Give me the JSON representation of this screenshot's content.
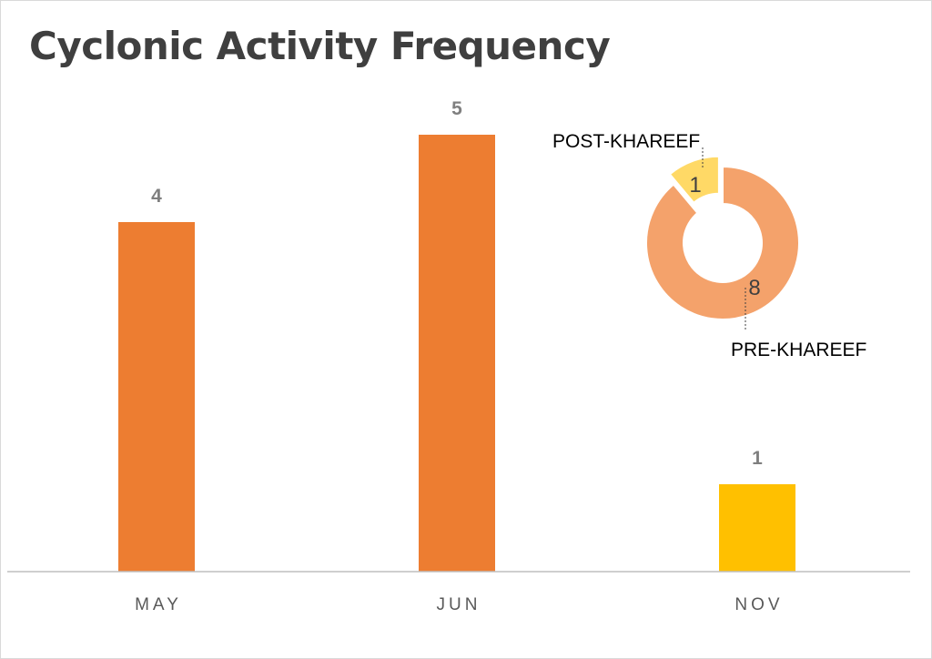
{
  "chart_data": [
    {
      "type": "bar",
      "title": "Cyclonic Activity Frequency",
      "categories": [
        "MAY",
        "JUN",
        "NOV"
      ],
      "values": [
        4,
        5,
        1
      ],
      "colors": [
        "#ed7d31",
        "#ed7d31",
        "#ffc000"
      ],
      "ylim": [
        0,
        5.5
      ],
      "grid": false,
      "legend": "none"
    },
    {
      "type": "pie",
      "subtype": "donut",
      "labels": [
        "PRE-KHAREEF",
        "POST-KHAREEF"
      ],
      "values": [
        8,
        1
      ],
      "colors": [
        "#f4a26b",
        "#ffd966"
      ],
      "exploded": "POST-KHAREEF"
    }
  ]
}
